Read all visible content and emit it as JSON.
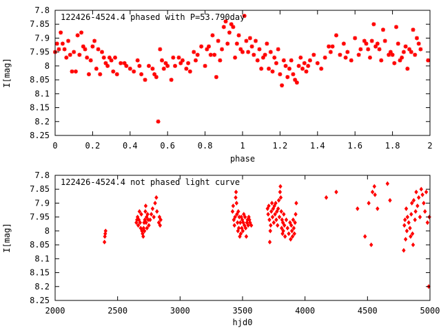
{
  "chart_data": [
    {
      "type": "scatter",
      "title": "122426-4524.4 phased with P=53.790day",
      "xlabel": "phase",
      "ylabel": "I[mag]",
      "xlim": [
        0,
        2
      ],
      "ylim": [
        7.8,
        8.25
      ],
      "y_inverted": true,
      "grid": false,
      "marker": "asterisk",
      "color": "#ff0000",
      "xticks": [
        "0",
        "0.2",
        "0.4",
        "0.6",
        "0.8",
        "1",
        "1.2",
        "1.4",
        "1.6",
        "1.8",
        "2"
      ],
      "xtick_values": [
        0,
        0.2,
        0.4,
        0.6,
        0.8,
        1,
        1.2,
        1.4,
        1.6,
        1.8,
        2
      ],
      "yticks": [
        "7.8",
        "7.85",
        "7.9",
        "7.95",
        "8",
        "8.05",
        "8.1",
        "8.15",
        "8.2",
        "8.25"
      ],
      "ytick_values": [
        7.8,
        7.85,
        7.9,
        7.95,
        8,
        8.05,
        8.1,
        8.15,
        8.2,
        8.25
      ],
      "points": [
        [
          0.0,
          7.95
        ],
        [
          0.01,
          7.92
        ],
        [
          0.02,
          7.94
        ],
        [
          0.03,
          7.88
        ],
        [
          0.04,
          7.92
        ],
        [
          0.05,
          7.94
        ],
        [
          0.06,
          7.97
        ],
        [
          0.07,
          7.91
        ],
        [
          0.08,
          7.96
        ],
        [
          0.09,
          8.02
        ],
        [
          0.1,
          7.95
        ],
        [
          0.11,
          8.02
        ],
        [
          0.12,
          7.89
        ],
        [
          0.13,
          7.96
        ],
        [
          0.14,
          7.88
        ],
        [
          0.15,
          7.93
        ],
        [
          0.16,
          7.94
        ],
        [
          0.17,
          7.97
        ],
        [
          0.18,
          8.03
        ],
        [
          0.19,
          7.98
        ],
        [
          0.2,
          7.93
        ],
        [
          0.21,
          7.91
        ],
        [
          0.22,
          8.01
        ],
        [
          0.23,
          7.94
        ],
        [
          0.24,
          8.03
        ],
        [
          0.25,
          7.95
        ],
        [
          0.26,
          7.97
        ],
        [
          0.27,
          7.99
        ],
        [
          0.28,
          8.0
        ],
        [
          0.29,
          7.97
        ],
        [
          0.3,
          7.98
        ],
        [
          0.31,
          8.02
        ],
        [
          0.32,
          7.97
        ],
        [
          0.33,
          8.03
        ],
        [
          0.35,
          7.99
        ],
        [
          0.37,
          7.99
        ],
        [
          0.38,
          8.0
        ],
        [
          0.4,
          8.01
        ],
        [
          0.42,
          8.02
        ],
        [
          0.44,
          7.98
        ],
        [
          0.45,
          8.0
        ],
        [
          0.46,
          8.03
        ],
        [
          0.48,
          8.05
        ],
        [
          0.5,
          8.0
        ],
        [
          0.52,
          8.01
        ],
        [
          0.53,
          8.03
        ],
        [
          0.54,
          8.04
        ],
        [
          0.55,
          8.2
        ],
        [
          0.56,
          7.94
        ],
        [
          0.57,
          7.98
        ],
        [
          0.58,
          8.01
        ],
        [
          0.59,
          7.99
        ],
        [
          0.6,
          8.0
        ],
        [
          0.62,
          8.05
        ],
        [
          0.63,
          7.97
        ],
        [
          0.64,
          8.0
        ],
        [
          0.66,
          7.97
        ],
        [
          0.67,
          7.99
        ],
        [
          0.68,
          7.98
        ],
        [
          0.7,
          8.01
        ],
        [
          0.71,
          7.99
        ],
        [
          0.72,
          8.02
        ],
        [
          0.74,
          7.95
        ],
        [
          0.75,
          7.98
        ],
        [
          0.76,
          7.96
        ],
        [
          0.78,
          7.93
        ],
        [
          0.8,
          8.0
        ],
        [
          0.81,
          7.94
        ],
        [
          0.82,
          7.93
        ],
        [
          0.83,
          7.96
        ],
        [
          0.84,
          7.89
        ],
        [
          0.85,
          7.96
        ],
        [
          0.86,
          8.04
        ],
        [
          0.87,
          7.91
        ],
        [
          0.88,
          7.98
        ],
        [
          0.89,
          7.94
        ],
        [
          0.9,
          7.86
        ],
        [
          0.91,
          7.84
        ],
        [
          0.92,
          7.92
        ],
        [
          0.93,
          7.88
        ],
        [
          0.94,
          7.85
        ],
        [
          0.95,
          7.86
        ],
        [
          0.96,
          7.97
        ],
        [
          0.97,
          7.92
        ],
        [
          0.98,
          7.89
        ],
        [
          0.99,
          7.94
        ],
        [
          1.0,
          7.95
        ],
        [
          1.01,
          7.82
        ],
        [
          1.02,
          7.91
        ],
        [
          1.03,
          7.95
        ],
        [
          1.04,
          7.9
        ],
        [
          1.05,
          7.93
        ],
        [
          1.06,
          7.96
        ],
        [
          1.07,
          7.91
        ],
        [
          1.08,
          7.98
        ],
        [
          1.09,
          7.94
        ],
        [
          1.1,
          8.01
        ],
        [
          1.11,
          7.97
        ],
        [
          1.12,
          7.96
        ],
        [
          1.13,
          7.92
        ],
        [
          1.14,
          8.01
        ],
        [
          1.15,
          7.95
        ],
        [
          1.16,
          8.02
        ],
        [
          1.17,
          7.97
        ],
        [
          1.18,
          7.99
        ],
        [
          1.19,
          7.94
        ],
        [
          1.2,
          8.03
        ],
        [
          1.21,
          8.07
        ],
        [
          1.22,
          7.98
        ],
        [
          1.23,
          8.0
        ],
        [
          1.24,
          8.04
        ],
        [
          1.25,
          8.01
        ],
        [
          1.26,
          7.98
        ],
        [
          1.27,
          8.03
        ],
        [
          1.28,
          8.05
        ],
        [
          1.29,
          8.06
        ],
        [
          1.3,
          8.0
        ],
        [
          1.31,
          7.97
        ],
        [
          1.32,
          8.01
        ],
        [
          1.33,
          7.99
        ],
        [
          1.34,
          8.02
        ],
        [
          1.35,
          8.0
        ],
        [
          1.36,
          7.98
        ],
        [
          1.38,
          7.96
        ],
        [
          1.4,
          7.99
        ],
        [
          1.42,
          8.01
        ],
        [
          1.44,
          7.97
        ],
        [
          1.46,
          7.93
        ],
        [
          1.47,
          7.95
        ],
        [
          1.48,
          7.93
        ],
        [
          1.5,
          7.89
        ],
        [
          1.52,
          7.96
        ],
        [
          1.54,
          7.92
        ],
        [
          1.55,
          7.97
        ],
        [
          1.56,
          7.95
        ],
        [
          1.58,
          7.98
        ],
        [
          1.6,
          7.9
        ],
        [
          1.62,
          7.96
        ],
        [
          1.63,
          7.94
        ],
        [
          1.65,
          7.91
        ],
        [
          1.66,
          7.92
        ],
        [
          1.67,
          7.94
        ],
        [
          1.68,
          7.97
        ],
        [
          1.69,
          7.91
        ],
        [
          1.7,
          7.85
        ],
        [
          1.71,
          7.93
        ],
        [
          1.72,
          7.92
        ],
        [
          1.73,
          7.94
        ],
        [
          1.74,
          7.98
        ],
        [
          1.75,
          7.87
        ],
        [
          1.76,
          7.91
        ],
        [
          1.78,
          7.96
        ],
        [
          1.79,
          7.95
        ],
        [
          1.8,
          7.96
        ],
        [
          1.81,
          7.99
        ],
        [
          1.82,
          7.86
        ],
        [
          1.83,
          7.92
        ],
        [
          1.84,
          7.98
        ],
        [
          1.85,
          7.97
        ],
        [
          1.86,
          7.95
        ],
        [
          1.87,
          7.93
        ],
        [
          1.88,
          8.01
        ],
        [
          1.89,
          7.94
        ],
        [
          1.9,
          7.95
        ],
        [
          1.91,
          7.87
        ],
        [
          1.92,
          7.96
        ],
        [
          1.93,
          7.9
        ],
        [
          1.94,
          7.92
        ],
        [
          1.95,
          7.94
        ],
        [
          1.99,
          7.98
        ]
      ]
    },
    {
      "type": "scatter",
      "title": "122426-4524.4 not phased light curve",
      "xlabel": "hjd0",
      "ylabel": "I[mag]",
      "xlim": [
        2000,
        5000
      ],
      "ylim": [
        7.8,
        8.25
      ],
      "y_inverted": true,
      "grid": false,
      "marker": "diamond",
      "color": "#ff0000",
      "xticks": [
        "2000",
        "2500",
        "3000",
        "3500",
        "4000",
        "4500",
        "5000"
      ],
      "xtick_values": [
        2000,
        2500,
        3000,
        3500,
        4000,
        4500,
        5000
      ],
      "yticks": [
        "7.8",
        "7.85",
        "7.9",
        "7.95",
        "8",
        "8.05",
        "8.1",
        "8.15",
        "8.2",
        "8.25"
      ],
      "ytick_values": [
        7.8,
        7.85,
        7.9,
        7.95,
        8,
        8.05,
        8.1,
        8.15,
        8.2,
        8.25
      ],
      "points": [
        [
          2395,
          8.04
        ],
        [
          2398,
          8.02
        ],
        [
          2401,
          8.01
        ],
        [
          2404,
          8.0
        ],
        [
          2650,
          7.97
        ],
        [
          2655,
          7.96
        ],
        [
          2660,
          7.95
        ],
        [
          2665,
          7.98
        ],
        [
          2670,
          7.96
        ],
        [
          2675,
          7.93
        ],
        [
          2680,
          7.97
        ],
        [
          2685,
          7.99
        ],
        [
          2690,
          7.94
        ],
        [
          2695,
          8.0
        ],
        [
          2700,
          8.01
        ],
        [
          2705,
          8.02
        ],
        [
          2708,
          7.99
        ],
        [
          2712,
          7.97
        ],
        [
          2715,
          8.0
        ],
        [
          2718,
          7.96
        ],
        [
          2722,
          7.93
        ],
        [
          2725,
          7.91
        ],
        [
          2728,
          7.97
        ],
        [
          2732,
          7.95
        ],
        [
          2735,
          7.99
        ],
        [
          2740,
          7.94
        ],
        [
          2745,
          7.96
        ],
        [
          2750,
          7.98
        ],
        [
          2760,
          7.96
        ],
        [
          2770,
          7.94
        ],
        [
          2780,
          7.92
        ],
        [
          2790,
          7.95
        ],
        [
          2800,
          7.9
        ],
        [
          2810,
          7.88
        ],
        [
          2815,
          7.93
        ],
        [
          2830,
          7.97
        ],
        [
          2835,
          7.95
        ],
        [
          2840,
          7.98
        ],
        [
          2845,
          7.96
        ],
        [
          3420,
          7.93
        ],
        [
          3425,
          7.91
        ],
        [
          3430,
          7.96
        ],
        [
          3435,
          7.98
        ],
        [
          3440,
          7.95
        ],
        [
          3445,
          7.88
        ],
        [
          3448,
          7.86
        ],
        [
          3452,
          7.9
        ],
        [
          3455,
          7.94
        ],
        [
          3460,
          7.97
        ],
        [
          3463,
          8.0
        ],
        [
          3466,
          7.93
        ],
        [
          3470,
          7.99
        ],
        [
          3474,
          7.95
        ],
        [
          3478,
          8.02
        ],
        [
          3482,
          7.97
        ],
        [
          3486,
          8.01
        ],
        [
          3490,
          7.95
        ],
        [
          3494,
          7.99
        ],
        [
          3498,
          7.96
        ],
        [
          3502,
          8.0
        ],
        [
          3506,
          7.97
        ],
        [
          3510,
          7.94
        ],
        [
          3515,
          7.98
        ],
        [
          3520,
          7.95
        ],
        [
          3525,
          7.99
        ],
        [
          3530,
          8.02
        ],
        [
          3535,
          7.97
        ],
        [
          3540,
          7.96
        ],
        [
          3545,
          7.98
        ],
        [
          3550,
          7.95
        ],
        [
          3555,
          7.96
        ],
        [
          3560,
          7.97
        ],
        [
          3570,
          7.98
        ],
        [
          3700,
          7.92
        ],
        [
          3705,
          7.94
        ],
        [
          3710,
          7.91
        ],
        [
          3715,
          7.96
        ],
        [
          3718,
          8.04
        ],
        [
          3722,
          8.0
        ],
        [
          3725,
          7.98
        ],
        [
          3730,
          7.93
        ],
        [
          3735,
          7.9
        ],
        [
          3740,
          7.95
        ],
        [
          3745,
          7.92
        ],
        [
          3750,
          7.97
        ],
        [
          3755,
          7.91
        ],
        [
          3760,
          7.94
        ],
        [
          3765,
          7.9
        ],
        [
          3770,
          7.96
        ],
        [
          3775,
          7.93
        ],
        [
          3780,
          7.98
        ],
        [
          3785,
          7.92
        ],
        [
          3790,
          7.89
        ],
        [
          3795,
          7.95
        ],
        [
          3800,
          7.86
        ],
        [
          3803,
          7.84
        ],
        [
          3806,
          7.88
        ],
        [
          3810,
          7.93
        ],
        [
          3813,
          7.99
        ],
        [
          3816,
          7.96
        ],
        [
          3820,
          8.01
        ],
        [
          3823,
          7.97
        ],
        [
          3826,
          8.0
        ],
        [
          3830,
          7.94
        ],
        [
          3835,
          7.98
        ],
        [
          3840,
          8.02
        ],
        [
          3850,
          7.96
        ],
        [
          3860,
          7.99
        ],
        [
          3870,
          8.01
        ],
        [
          3880,
          7.97
        ],
        [
          3885,
          8.03
        ],
        [
          3890,
          7.98
        ],
        [
          3895,
          8.0
        ],
        [
          3900,
          8.02
        ],
        [
          3905,
          7.96
        ],
        [
          3910,
          7.99
        ],
        [
          3915,
          8.01
        ],
        [
          3920,
          7.97
        ],
        [
          3925,
          7.94
        ],
        [
          3930,
          7.9
        ],
        [
          4170,
          7.88
        ],
        [
          4250,
          7.86
        ],
        [
          4420,
          7.92
        ],
        [
          4480,
          8.02
        ],
        [
          4510,
          7.9
        ],
        [
          4530,
          8.05
        ],
        [
          4540,
          7.86
        ],
        [
          4555,
          7.84
        ],
        [
          4560,
          7.87
        ],
        [
          4580,
          7.92
        ],
        [
          4660,
          7.83
        ],
        [
          4680,
          7.89
        ],
        [
          4790,
          8.07
        ],
        [
          4795,
          7.98
        ],
        [
          4800,
          7.96
        ],
        [
          4805,
          8.03
        ],
        [
          4810,
          7.92
        ],
        [
          4815,
          8.0
        ],
        [
          4820,
          7.95
        ],
        [
          4830,
          7.97
        ],
        [
          4840,
          7.99
        ],
        [
          4845,
          8.02
        ],
        [
          4850,
          7.94
        ],
        [
          4855,
          7.9
        ],
        [
          4860,
          8.01
        ],
        [
          4865,
          8.05
        ],
        [
          4870,
          7.89
        ],
        [
          4880,
          7.96
        ],
        [
          4885,
          7.93
        ],
        [
          4890,
          7.86
        ],
        [
          4900,
          7.91
        ],
        [
          4910,
          7.88
        ],
        [
          4920,
          7.95
        ],
        [
          4930,
          7.85
        ],
        [
          4940,
          7.87
        ],
        [
          4950,
          7.9
        ],
        [
          4960,
          7.93
        ],
        [
          4970,
          7.86
        ],
        [
          4980,
          7.97
        ],
        [
          4990,
          8.2
        ],
        [
          4995,
          7.95
        ]
      ]
    }
  ]
}
